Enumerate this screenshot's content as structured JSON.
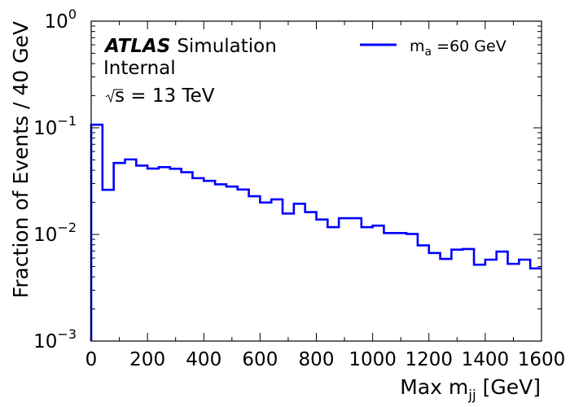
{
  "chart_data": {
    "type": "line",
    "style": "histogram-step",
    "y_scale": "log",
    "xlim": [
      0,
      1600
    ],
    "ylim": [
      0.001,
      1
    ],
    "bin_width": 40,
    "xlabel": {
      "main": "Max m",
      "sub": "jj",
      "tail": " [GeV]"
    },
    "ylabel": "Fraction of Events / 40 GeV",
    "x_ticks": [
      "0",
      "200",
      "400",
      "600",
      "800",
      "1000",
      "1200",
      "1400",
      "1600"
    ],
    "y_ticks": [
      {
        "base": "10",
        "exp": "−3"
      },
      {
        "base": "10",
        "exp": "−2"
      },
      {
        "base": "10",
        "exp": "−1"
      },
      {
        "base": "10",
        "exp": "0"
      }
    ],
    "label": {
      "experiment": "ATLAS",
      "status": "Simulation",
      "status2": "Internal",
      "energy": "s = 13 TeV"
    },
    "series": [
      {
        "name": {
          "main": "m",
          "sub": "a",
          "tail": " =60 GeV"
        },
        "color": "#0000ff",
        "bin_edges": [
          0,
          40,
          80,
          120,
          160,
          200,
          240,
          280,
          320,
          360,
          400,
          440,
          480,
          520,
          560,
          600,
          640,
          680,
          720,
          760,
          800,
          840,
          880,
          920,
          960,
          1000,
          1040,
          1080,
          1120,
          1160,
          1200,
          1240,
          1280,
          1320,
          1360,
          1400,
          1440,
          1480,
          1520,
          1560,
          1600
        ],
        "values": [
          0.107,
          0.0262,
          0.0468,
          0.0505,
          0.0442,
          0.0415,
          0.0428,
          0.0413,
          0.0383,
          0.0337,
          0.0318,
          0.0295,
          0.0281,
          0.0264,
          0.0228,
          0.0199,
          0.0213,
          0.0157,
          0.0194,
          0.0162,
          0.0138,
          0.0117,
          0.0142,
          0.0142,
          0.0117,
          0.0121,
          0.0103,
          0.0103,
          0.0101,
          0.0079,
          0.0067,
          0.0059,
          0.0072,
          0.0073,
          0.0052,
          0.0058,
          0.0069,
          0.0053,
          0.0058,
          0.0048
        ]
      }
    ]
  }
}
